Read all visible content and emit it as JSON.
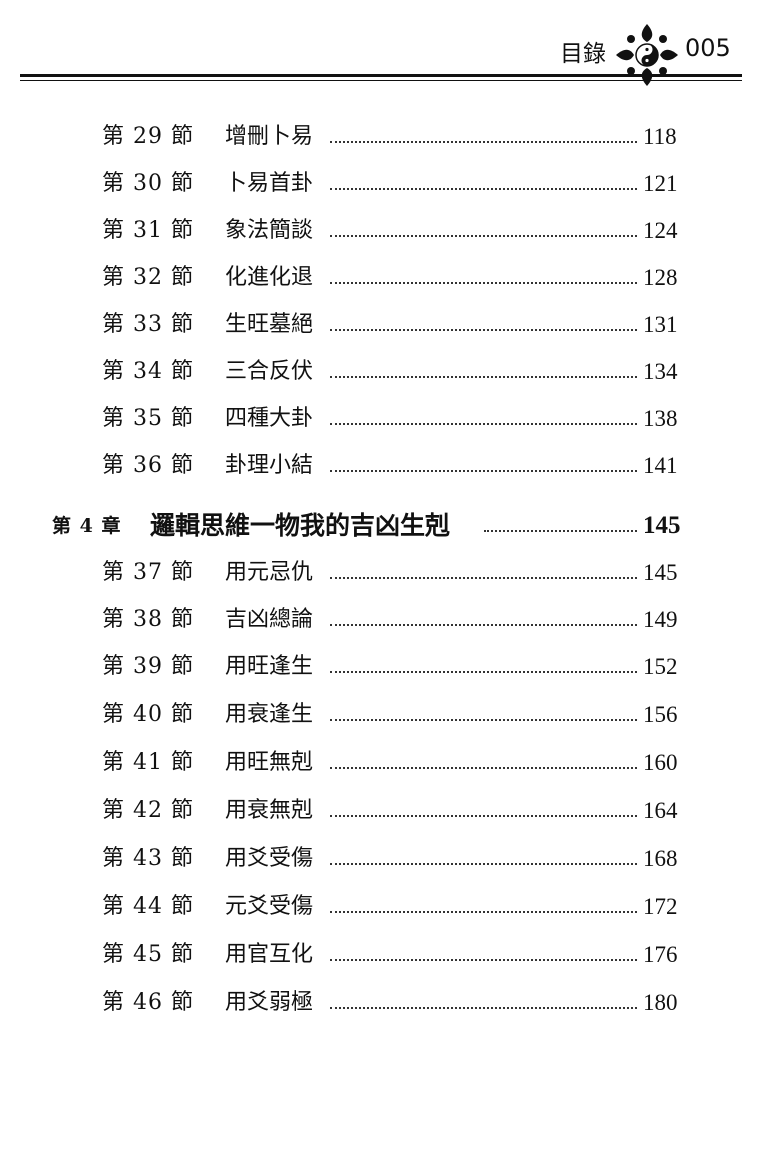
{
  "header": {
    "title": "目錄",
    "page": "005",
    "ornament": "yin-yang-lotus-ornament"
  },
  "entries": [
    {
      "num": "第 29 節",
      "title": "增刪卜易",
      "page": "118"
    },
    {
      "num": "第 30 節",
      "title": "卜易首卦",
      "page": "121"
    },
    {
      "num": "第 31 節",
      "title": "象法簡談",
      "page": "124"
    },
    {
      "num": "第 32 節",
      "title": "化進化退",
      "page": "128"
    },
    {
      "num": "第 33 節",
      "title": "生旺墓絕",
      "page": "131"
    },
    {
      "num": "第 34 節",
      "title": "三合反伏",
      "page": "134"
    },
    {
      "num": "第 35 節",
      "title": "四種大卦",
      "page": "138"
    },
    {
      "num": "第 36 節",
      "title": "卦理小結",
      "page": "141"
    },
    {
      "num": "第 4 章",
      "title": "邏輯思維一物我的吉凶生剋",
      "page": "145",
      "chapter": true
    },
    {
      "num": "第 37 節",
      "title": "用元忌仇",
      "page": "145"
    },
    {
      "num": "第 38 節",
      "title": "吉凶總論",
      "page": "149"
    },
    {
      "num": "第 39 節",
      "title": "用旺逢生",
      "page": "152"
    },
    {
      "num": "第 40 節",
      "title": "用衰逢生",
      "page": "156"
    },
    {
      "num": "第 41 節",
      "title": "用旺無剋",
      "page": "160"
    },
    {
      "num": "第 42 節",
      "title": "用衰無剋",
      "page": "164"
    },
    {
      "num": "第 43 節",
      "title": "用爻受傷",
      "page": "168"
    },
    {
      "num": "第 44 節",
      "title": "元爻受傷",
      "page": "172"
    },
    {
      "num": "第 45 節",
      "title": "用官互化",
      "page": "176"
    },
    {
      "num": "第 46 節",
      "title": "用爻弱極",
      "page": "180"
    }
  ]
}
